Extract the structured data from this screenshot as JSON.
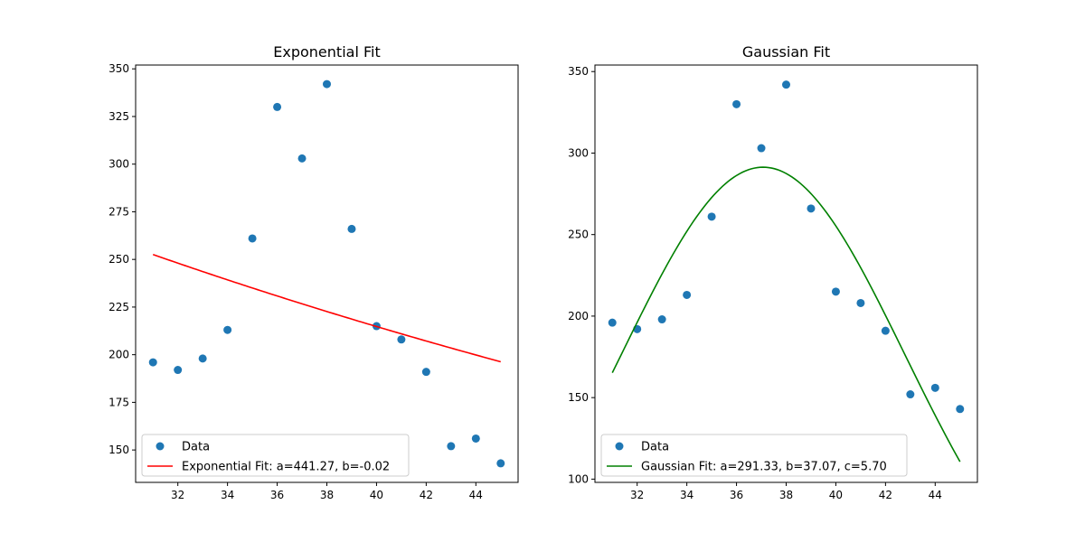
{
  "chart_data": [
    {
      "type": "scatter",
      "title": "Exponential Fit",
      "xlabel": "",
      "ylabel": "",
      "xlim": [
        30.3,
        45.7
      ],
      "ylim": [
        133,
        352
      ],
      "xticks": [
        32,
        34,
        36,
        38,
        40,
        42,
        44
      ],
      "yticks": [
        150,
        175,
        200,
        225,
        250,
        275,
        300,
        325,
        350
      ],
      "grid": false,
      "legend": "lower-left",
      "series": [
        {
          "name": "Data",
          "kind": "scatter",
          "color": "#1f77b4",
          "x": [
            31,
            32,
            33,
            34,
            35,
            36,
            37,
            38,
            39,
            40,
            41,
            42,
            43,
            44,
            45
          ],
          "y": [
            196,
            192,
            198,
            213,
            261,
            330,
            303,
            342,
            266,
            215,
            208,
            191,
            152,
            156,
            143
          ]
        },
        {
          "name": "Exponential Fit: a=441.27, b=-0.02",
          "kind": "line",
          "color": "#ff0000",
          "model": "exponential",
          "params": {
            "a": 441.27,
            "b": -0.018
          },
          "x_range": [
            31,
            45
          ]
        }
      ]
    },
    {
      "type": "scatter",
      "title": "Gaussian Fit",
      "xlabel": "",
      "ylabel": "",
      "xlim": [
        30.3,
        45.7
      ],
      "ylim": [
        98,
        354
      ],
      "xticks": [
        32,
        34,
        36,
        38,
        40,
        42,
        44
      ],
      "yticks": [
        100,
        150,
        200,
        250,
        300,
        350
      ],
      "grid": false,
      "legend": "lower-left",
      "series": [
        {
          "name": "Data",
          "kind": "scatter",
          "color": "#1f77b4",
          "x": [
            31,
            32,
            33,
            34,
            35,
            36,
            37,
            38,
            39,
            40,
            41,
            42,
            43,
            44,
            45
          ],
          "y": [
            196,
            192,
            198,
            213,
            261,
            330,
            303,
            342,
            266,
            215,
            208,
            191,
            152,
            156,
            143
          ]
        },
        {
          "name": "Gaussian Fit: a=291.33, b=37.07, c=5.70",
          "kind": "line",
          "color": "#008000",
          "model": "gaussian",
          "params": {
            "a": 291.33,
            "b": 37.07,
            "c": 5.7
          },
          "x_range": [
            31,
            45
          ]
        }
      ]
    }
  ]
}
